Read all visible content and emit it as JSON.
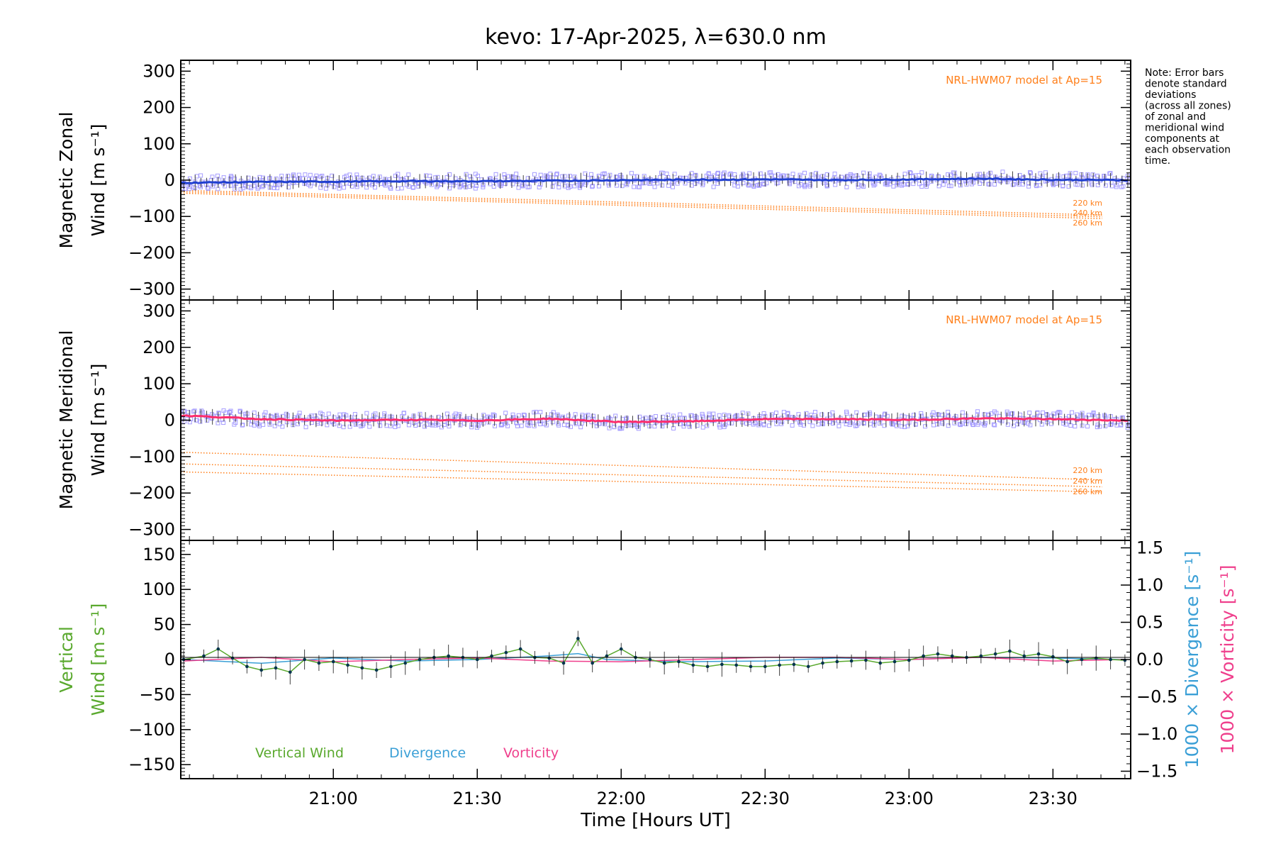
{
  "chart_data": {
    "title": "kevo: 17-Apr-2025, λ=630.0 nm",
    "type": "line",
    "note_lines": [
      "Note: Error bars",
      "denote standard",
      "deviations",
      "(across all zones)",
      "of zonal and",
      "meridional wind",
      "components at",
      "each observation",
      "time."
    ],
    "time_axis": {
      "label": "Time [Hours UT]",
      "range_hours": [
        20.47,
        23.77
      ],
      "ticks": [
        {
          "value": 21.0,
          "label": "21:00"
        },
        {
          "value": 21.5,
          "label": "21:30"
        },
        {
          "value": 22.0,
          "label": "22:00"
        },
        {
          "value": 22.5,
          "label": "22:30"
        },
        {
          "value": 23.0,
          "label": "23:00"
        },
        {
          "value": 23.5,
          "label": "23:30"
        }
      ]
    },
    "panels": [
      {
        "id": "zonal",
        "ylabel_line1": "Magnetic Zonal",
        "ylabel_line2": "Wind [m s⁻¹]",
        "ylim": [
          -330,
          330
        ],
        "yticks": [
          300,
          200,
          100,
          0,
          -100,
          -200,
          -300
        ],
        "yticklabels": [
          "300",
          "200",
          "100",
          "0",
          "−100",
          "−200",
          "−300"
        ],
        "model_label": "NRL-HWM07 model at Ap=15",
        "wind_color": "#1f3fd0",
        "model_series": [
          {
            "name": "220 km",
            "start": -28,
            "end": -96
          },
          {
            "name": "240 km",
            "start": -32,
            "end": -101
          },
          {
            "name": "260 km",
            "start": -36,
            "end": -106
          }
        ],
        "wind": {
          "x": [
            20.5,
            20.75,
            21.0,
            21.25,
            21.5,
            21.75,
            22.0,
            22.25,
            22.5,
            22.75,
            23.0,
            23.25,
            23.5,
            23.75
          ],
          "y": [
            -7,
            -5,
            -4,
            -3,
            -3,
            -2,
            0,
            1,
            2,
            0,
            2,
            4,
            1,
            0
          ]
        }
      },
      {
        "id": "meridional",
        "ylabel_line1": "Magnetic Meridional",
        "ylabel_line2": "Wind [m s⁻¹]",
        "ylim": [
          -330,
          330
        ],
        "yticks": [
          300,
          200,
          100,
          0,
          -100,
          -200,
          -300
        ],
        "yticklabels": [
          "300",
          "200",
          "100",
          "0",
          "−100",
          "−200",
          "−300"
        ],
        "model_label": "NRL-HWM07 model at Ap=15",
        "wind_color": "#ff2d6e",
        "model_series": [
          {
            "name": "220 km",
            "start": -88,
            "end": -164
          },
          {
            "name": "240 km",
            "start": -120,
            "end": -183
          },
          {
            "name": "260 km",
            "start": -142,
            "end": -197
          }
        ],
        "wind": {
          "x": [
            20.5,
            20.75,
            21.0,
            21.25,
            21.5,
            21.75,
            22.0,
            22.25,
            22.5,
            22.75,
            23.0,
            23.25,
            23.5,
            23.75
          ],
          "y": [
            12,
            3,
            -1,
            1,
            -1,
            4,
            -5,
            -3,
            3,
            3,
            1,
            5,
            3,
            -1
          ]
        }
      },
      {
        "id": "vertical",
        "ylabel_line1": "Vertical",
        "ylabel_line2": "Wind [m s⁻¹]",
        "ylim": [
          -170,
          170
        ],
        "yticks": [
          150,
          100,
          50,
          0,
          -50,
          -100,
          -150
        ],
        "yticklabels": [
          "150",
          "100",
          "50",
          "0",
          "−50",
          "−100",
          "−150"
        ],
        "right_ylim": [
          -1.6,
          1.6
        ],
        "right_yticks": [
          1.5,
          1.0,
          0.5,
          0.0,
          -0.5,
          -1.0,
          -1.5
        ],
        "right_yticklabels": [
          "1.5",
          "1.0",
          "0.5",
          "0.0",
          "−0.5",
          "−1.0",
          "−1.5"
        ],
        "right_label_divergence": "1000 × Divergence [s⁻¹]",
        "right_label_vorticity": "1000 × Vorticity [s⁻¹]",
        "legend": [
          {
            "name": "Vertical Wind",
            "color": "#5aa92e"
          },
          {
            "name": "Divergence",
            "color": "#3a9fd6"
          },
          {
            "name": "Vorticity",
            "color": "#ef3f8c"
          }
        ],
        "vertical_wind": {
          "x": [
            20.48,
            20.55,
            20.6,
            20.65,
            20.7,
            20.75,
            20.8,
            20.85,
            20.9,
            20.95,
            21.0,
            21.05,
            21.1,
            21.15,
            21.2,
            21.25,
            21.3,
            21.35,
            21.4,
            21.45,
            21.5,
            21.55,
            21.6,
            21.65,
            21.7,
            21.75,
            21.8,
            21.85,
            21.9,
            21.95,
            22.0,
            22.05,
            22.1,
            22.15,
            22.2,
            22.25,
            22.3,
            22.35,
            22.4,
            22.45,
            22.5,
            22.55,
            22.6,
            22.65,
            22.7,
            22.75,
            22.8,
            22.85,
            22.9,
            22.95,
            23.0,
            23.05,
            23.1,
            23.15,
            23.2,
            23.25,
            23.3,
            23.35,
            23.4,
            23.45,
            23.5,
            23.55,
            23.6,
            23.65,
            23.7,
            23.75
          ],
          "y": [
            0,
            5,
            15,
            2,
            -10,
            -15,
            -12,
            -18,
            0,
            -5,
            -3,
            -8,
            -12,
            -15,
            -10,
            -5,
            0,
            3,
            5,
            3,
            0,
            5,
            10,
            15,
            3,
            2,
            -5,
            30,
            -5,
            5,
            15,
            3,
            0,
            -5,
            -3,
            -8,
            -10,
            -7,
            -8,
            -10,
            -10,
            -8,
            -7,
            -10,
            -5,
            -3,
            -2,
            -1,
            -5,
            -3,
            -1,
            5,
            8,
            5,
            3,
            5,
            8,
            12,
            5,
            8,
            4,
            -3,
            0,
            2,
            0,
            -1
          ]
        },
        "divergence": {
          "x": [
            20.48,
            20.75,
            21.0,
            21.25,
            21.5,
            21.75,
            21.85,
            21.95,
            22.2,
            22.5,
            22.75,
            23.0,
            23.25,
            23.5,
            23.75
          ],
          "y": [
            0.0,
            -0.05,
            0.02,
            -0.02,
            0.0,
            0.05,
            0.08,
            0.0,
            -0.03,
            -0.02,
            0.02,
            0.0,
            0.03,
            0.02,
            0.0
          ]
        },
        "vorticity": {
          "x": [
            20.48,
            20.75,
            21.0,
            21.25,
            21.5,
            21.75,
            22.0,
            22.25,
            22.5,
            22.75,
            23.0,
            23.25,
            23.5,
            23.75
          ],
          "y": [
            -0.02,
            0.03,
            -0.03,
            0.0,
            0.02,
            -0.02,
            -0.03,
            0.0,
            0.03,
            0.03,
            0.0,
            0.03,
            -0.02,
            0.0
          ]
        }
      }
    ]
  },
  "colors": {
    "axis": "#000000",
    "model": "#ff7f1a",
    "scatter": "#a59cff",
    "errorbar": "#404040",
    "vertical_points": "#00334d"
  }
}
